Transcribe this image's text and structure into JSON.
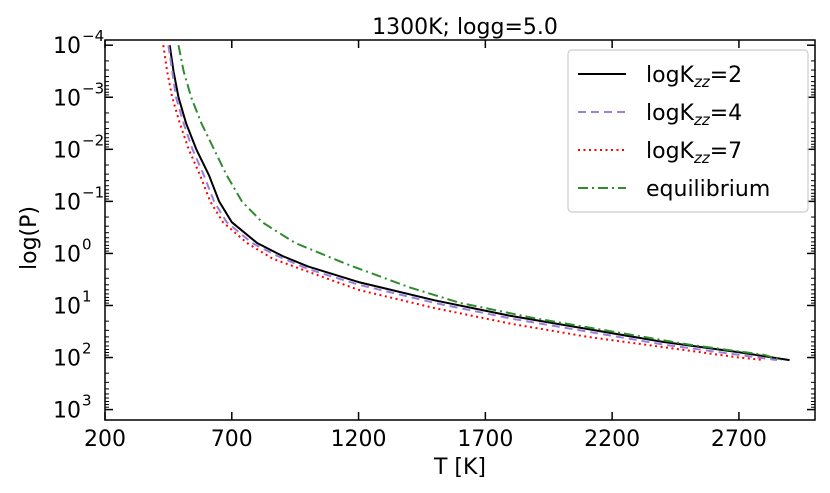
{
  "chart_data": {
    "type": "line",
    "title": "1300K; logg=5.0",
    "xlabel": "T [K]",
    "ylabel": "log(P)",
    "xlim": [
      200,
      3000
    ],
    "ylim": [
      -4.1,
      3.2
    ],
    "y_inverted": true,
    "y_scale": "log",
    "x_ticks": [
      200,
      700,
      1200,
      1700,
      2200,
      2700
    ],
    "y_ticks": [
      {
        "value": -4,
        "base": "10",
        "exp": "−4"
      },
      {
        "value": -3,
        "base": "10",
        "exp": "−3"
      },
      {
        "value": -2,
        "base": "10",
        "exp": "−2"
      },
      {
        "value": -1,
        "base": "10",
        "exp": "−1"
      },
      {
        "value": 0,
        "base": "10",
        "exp": "0"
      },
      {
        "value": 1,
        "base": "10",
        "exp": "1"
      },
      {
        "value": 2,
        "base": "10",
        "exp": "2"
      },
      {
        "value": 3,
        "base": "10",
        "exp": "3"
      }
    ],
    "grid": false,
    "legend_position": "top-right",
    "series": [
      {
        "name": "logKzz=2",
        "label_main": "logK",
        "label_sub": "zz",
        "label_tail": "=2",
        "color": "#000000",
        "dash": "solid",
        "x": [
          455,
          470,
          490,
          520,
          560,
          610,
          650,
          700,
          800,
          900,
          1000,
          1200,
          1500,
          1800,
          2100,
          2400,
          2700,
          2900
        ],
        "y": [
          -4.0,
          -3.5,
          -3.0,
          -2.5,
          -2.0,
          -1.5,
          -1.0,
          -0.6,
          -0.2,
          0.05,
          0.25,
          0.55,
          0.9,
          1.2,
          1.45,
          1.7,
          1.9,
          2.05
        ]
      },
      {
        "name": "logKzz=4",
        "label_main": "logK",
        "label_sub": "zz",
        "label_tail": "=4",
        "color": "#9c7fdc",
        "dash": "dashed",
        "x": [
          450,
          465,
          480,
          510,
          545,
          590,
          630,
          680,
          780,
          880,
          1000,
          1200,
          1500,
          1800,
          2100,
          2400,
          2700,
          2850
        ],
        "y": [
          -4.0,
          -3.5,
          -3.0,
          -2.5,
          -2.0,
          -1.5,
          -1.0,
          -0.6,
          -0.2,
          0.05,
          0.3,
          0.6,
          0.95,
          1.25,
          1.5,
          1.75,
          1.95,
          2.05
        ]
      },
      {
        "name": "logKzz=7",
        "label_main": "logK",
        "label_sub": "zz",
        "label_tail": "=7",
        "color": "#ff0000",
        "dash": "dotted",
        "x": [
          430,
          445,
          465,
          495,
          530,
          575,
          615,
          665,
          760,
          860,
          1000,
          1200,
          1500,
          1800,
          2100,
          2400,
          2700,
          2800
        ],
        "y": [
          -4.0,
          -3.5,
          -3.0,
          -2.5,
          -2.0,
          -1.5,
          -1.0,
          -0.6,
          -0.2,
          0.1,
          0.35,
          0.7,
          1.05,
          1.35,
          1.6,
          1.8,
          2.0,
          2.05
        ]
      },
      {
        "name": "equilibrium",
        "label_main": "equilibrium",
        "label_sub": "",
        "label_tail": "",
        "color": "#2e8b2e",
        "dash": "dashdot",
        "x": [
          490,
          510,
          540,
          580,
          630,
          680,
          740,
          820,
          950,
          1150,
          1400,
          1600,
          1900,
          2200,
          2500,
          2800,
          2870
        ],
        "y": [
          -4.0,
          -3.5,
          -3.0,
          -2.5,
          -2.0,
          -1.5,
          -1.0,
          -0.6,
          -0.2,
          0.2,
          0.65,
          0.95,
          1.25,
          1.5,
          1.75,
          1.95,
          2.05
        ]
      }
    ]
  }
}
